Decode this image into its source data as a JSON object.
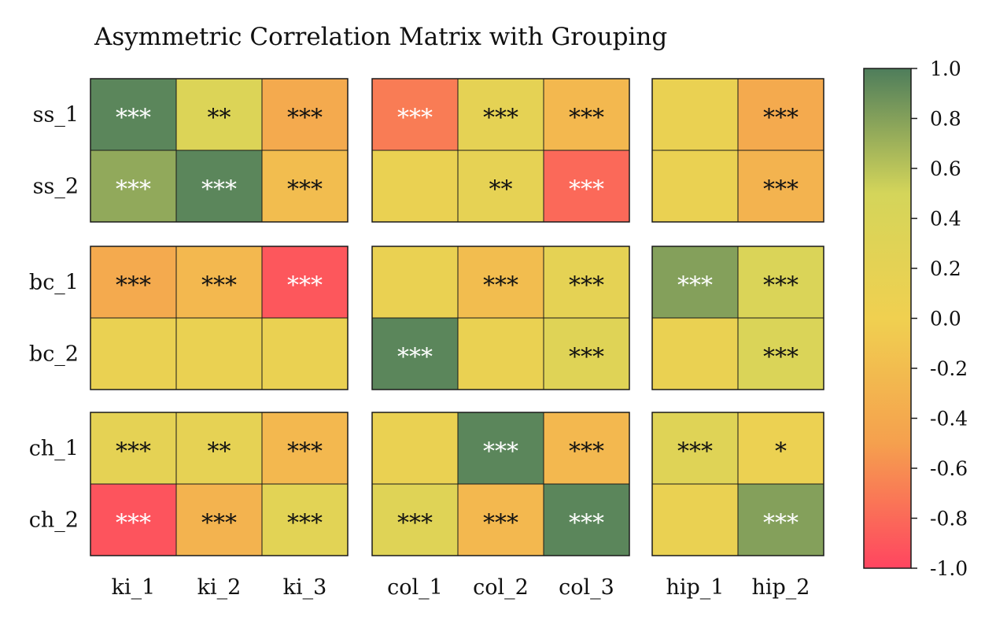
{
  "chart_data": {
    "type": "heatmap",
    "title": "Asymmetric Correlation Matrix with Grouping",
    "row_groups": [
      [
        "ss_1",
        "ss_2"
      ],
      [
        "bc_1",
        "bc_2"
      ],
      [
        "ch_1",
        "ch_2"
      ]
    ],
    "col_groups": [
      [
        "ki_1",
        "ki_2",
        "ki_3"
      ],
      [
        "col_1",
        "col_2",
        "col_3"
      ],
      [
        "hip_1",
        "hip_2"
      ]
    ],
    "rows": [
      "ss_1",
      "ss_2",
      "bc_1",
      "bc_2",
      "ch_1",
      "ch_2"
    ],
    "columns": [
      "ki_1",
      "ki_2",
      "ki_3",
      "col_1",
      "col_2",
      "col_3",
      "hip_1",
      "hip_2"
    ],
    "values": [
      [
        0.95,
        0.35,
        -0.4,
        -0.7,
        0.2,
        -0.25,
        0.1,
        -0.4
      ],
      [
        0.75,
        0.95,
        -0.2,
        0.1,
        0.18,
        -0.8,
        0.1,
        -0.3
      ],
      [
        -0.4,
        -0.25,
        -0.9,
        0.1,
        -0.2,
        0.2,
        0.8,
        0.4
      ],
      [
        0.1,
        0.1,
        0.1,
        0.95,
        0.1,
        0.3,
        0.1,
        0.4
      ],
      [
        0.2,
        0.18,
        -0.25,
        0.1,
        0.95,
        -0.25,
        0.3,
        0.08
      ],
      [
        -0.92,
        -0.3,
        0.25,
        0.3,
        -0.25,
        0.95,
        0.1,
        0.8
      ]
    ],
    "significance": [
      [
        "***",
        "**",
        "***",
        "***",
        "***",
        "***",
        "",
        "***"
      ],
      [
        "***",
        "***",
        "***",
        "",
        "**",
        "***",
        "",
        "***"
      ],
      [
        "***",
        "***",
        "***",
        "",
        "***",
        "***",
        "***",
        "***"
      ],
      [
        "",
        "",
        "",
        "***",
        "",
        "***",
        "",
        "***"
      ],
      [
        "***",
        "**",
        "***",
        "",
        "***",
        "***",
        "***",
        "*"
      ],
      [
        "***",
        "***",
        "***",
        "***",
        "***",
        "***",
        "",
        "***"
      ]
    ],
    "colorbar": {
      "min": -1.0,
      "max": 1.0,
      "ticks": [
        "1.0",
        "0.8",
        "0.6",
        "0.4",
        "0.2",
        "0.0",
        "-0.2",
        "-0.4",
        "-0.6",
        "-0.8",
        "-1.0"
      ],
      "colors": [
        "#ff4560",
        "#f5a04e",
        "#f0d050",
        "#d4d55a",
        "#4e7d5b"
      ]
    },
    "legend": "right"
  }
}
